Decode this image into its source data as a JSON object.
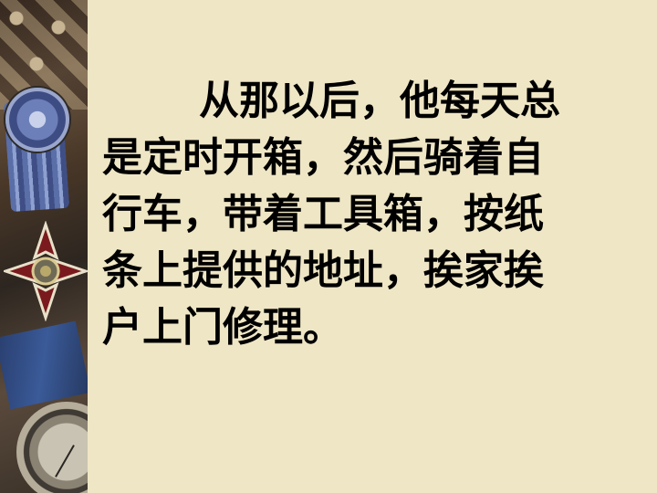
{
  "passage": {
    "lines": [
      "从那以后，他每天总",
      "是定时开箱，然后骑着自",
      "行车，带着工具箱，按纸",
      "条上提供的地址，挨家挨",
      "户上门修理。"
    ]
  },
  "colors": {
    "background": "#efe6c5",
    "text": "#000000"
  }
}
